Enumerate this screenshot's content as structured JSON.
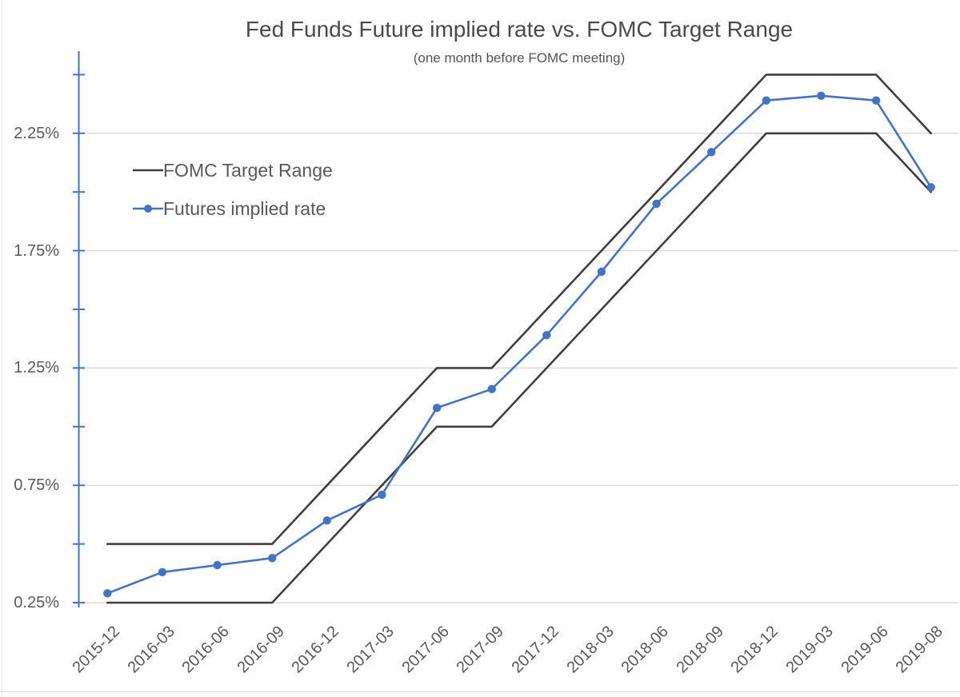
{
  "chart_data": {
    "type": "line",
    "title": "Fed Funds Future implied rate vs. FOMC Target Range",
    "subtitle": "(one month before FOMC meeting)",
    "categories": [
      "2015-12",
      "2016-03",
      "2016-06",
      "2016-09",
      "2016-12",
      "2017-03",
      "2017-06",
      "2017-09",
      "2017-12",
      "2018-03",
      "2018-06",
      "2018-09",
      "2018-12",
      "2019-03",
      "2019-06",
      "2019-08"
    ],
    "series": [
      {
        "name": "FOMC Target Range (upper bound)",
        "color": "#404040",
        "marker": false,
        "values": [
          0.5,
          0.5,
          0.5,
          0.5,
          0.75,
          1.0,
          1.25,
          1.25,
          1.5,
          1.75,
          2.0,
          2.25,
          2.5,
          2.5,
          2.5,
          2.25
        ]
      },
      {
        "name": "FOMC Target Range (lower bound)",
        "color": "#404040",
        "marker": false,
        "values": [
          0.25,
          0.25,
          0.25,
          0.25,
          0.5,
          0.75,
          1.0,
          1.0,
          1.25,
          1.5,
          1.75,
          2.0,
          2.25,
          2.25,
          2.25,
          2.0
        ]
      },
      {
        "name": "Futures implied rate",
        "color": "#4472C4",
        "marker": true,
        "values": [
          0.29,
          0.38,
          0.41,
          0.44,
          0.6,
          0.71,
          1.08,
          1.16,
          1.39,
          1.66,
          1.95,
          2.17,
          2.39,
          2.41,
          2.39,
          2.02
        ]
      }
    ],
    "legend": {
      "position": "top-left-inside",
      "items": [
        {
          "label": "FOMC Target Range",
          "swatch": "plain-line",
          "color": "#404040"
        },
        {
          "label": "Futures implied rate",
          "swatch": "line-with-dot-marker",
          "color": "#4472C4"
        }
      ]
    },
    "xlabel": "",
    "ylabel": "",
    "y_tick_labels": [
      "0.25%",
      "0.75%",
      "1.25%",
      "1.75%",
      "2.25%"
    ],
    "y_tick_values": [
      0.25,
      0.75,
      1.25,
      1.75,
      2.25
    ],
    "minor_tick_step": 0.25,
    "ylim": [
      0.25,
      2.6
    ],
    "grid": "horizontal-major-only",
    "x_labels_rotation_deg": -45
  },
  "colors": {
    "target_line": "#404040",
    "futures_line": "#4472C4",
    "gridline": "#D9D9D9",
    "axis_line": "#4472C4",
    "axis_tick": "#4472C4",
    "label_text": "#595959",
    "title_text": "#4a4a4a"
  }
}
